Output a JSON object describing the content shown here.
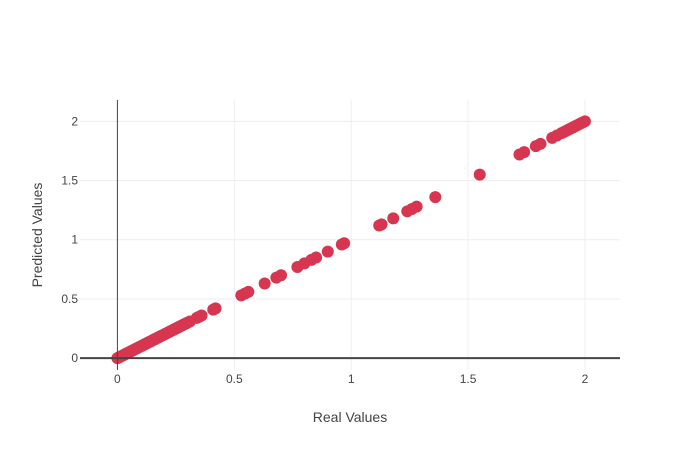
{
  "chart_data": {
    "type": "scatter",
    "title": "",
    "xlabel": "Real Values",
    "ylabel": "Predicted Values",
    "xlim": [
      -0.16,
      2.15
    ],
    "ylim": [
      -0.1,
      2.18
    ],
    "xticks": [
      0,
      0.5,
      1,
      1.5,
      2
    ],
    "xtick_labels": [
      "0",
      "0.5",
      "1",
      "1.5",
      "2"
    ],
    "yticks": [
      0,
      0.5,
      1,
      1.5,
      2
    ],
    "ytick_labels": [
      "0",
      "0.5",
      "1",
      "1.5",
      "2"
    ],
    "grid": true,
    "marker_color": "#d6364f",
    "points": [
      [
        0.0,
        0.0
      ],
      [
        0.005,
        0.005
      ],
      [
        0.01,
        0.01
      ],
      [
        0.015,
        0.015
      ],
      [
        0.02,
        0.02
      ],
      [
        0.025,
        0.025
      ],
      [
        0.03,
        0.03
      ],
      [
        0.035,
        0.035
      ],
      [
        0.04,
        0.04
      ],
      [
        0.045,
        0.045
      ],
      [
        0.05,
        0.05
      ],
      [
        0.055,
        0.055
      ],
      [
        0.06,
        0.06
      ],
      [
        0.065,
        0.065
      ],
      [
        0.07,
        0.07
      ],
      [
        0.075,
        0.075
      ],
      [
        0.08,
        0.08
      ],
      [
        0.085,
        0.085
      ],
      [
        0.09,
        0.09
      ],
      [
        0.095,
        0.095
      ],
      [
        0.1,
        0.1
      ],
      [
        0.105,
        0.105
      ],
      [
        0.11,
        0.11
      ],
      [
        0.115,
        0.115
      ],
      [
        0.12,
        0.12
      ],
      [
        0.125,
        0.125
      ],
      [
        0.13,
        0.13
      ],
      [
        0.135,
        0.135
      ],
      [
        0.14,
        0.14
      ],
      [
        0.145,
        0.145
      ],
      [
        0.15,
        0.15
      ],
      [
        0.155,
        0.155
      ],
      [
        0.16,
        0.16
      ],
      [
        0.165,
        0.165
      ],
      [
        0.17,
        0.17
      ],
      [
        0.175,
        0.175
      ],
      [
        0.18,
        0.18
      ],
      [
        0.185,
        0.185
      ],
      [
        0.19,
        0.19
      ],
      [
        0.195,
        0.195
      ],
      [
        0.2,
        0.2
      ],
      [
        0.205,
        0.205
      ],
      [
        0.21,
        0.21
      ],
      [
        0.215,
        0.215
      ],
      [
        0.22,
        0.22
      ],
      [
        0.225,
        0.225
      ],
      [
        0.23,
        0.23
      ],
      [
        0.235,
        0.235
      ],
      [
        0.24,
        0.24
      ],
      [
        0.245,
        0.245
      ],
      [
        0.25,
        0.25
      ],
      [
        0.255,
        0.255
      ],
      [
        0.26,
        0.26
      ],
      [
        0.265,
        0.265
      ],
      [
        0.27,
        0.27
      ],
      [
        0.275,
        0.275
      ],
      [
        0.28,
        0.28
      ],
      [
        0.285,
        0.285
      ],
      [
        0.29,
        0.29
      ],
      [
        0.295,
        0.295
      ],
      [
        0.3,
        0.3
      ],
      [
        0.31,
        0.31
      ],
      [
        0.34,
        0.34
      ],
      [
        0.35,
        0.35
      ],
      [
        0.36,
        0.36
      ],
      [
        0.41,
        0.41
      ],
      [
        0.42,
        0.42
      ],
      [
        0.53,
        0.53
      ],
      [
        0.545,
        0.545
      ],
      [
        0.56,
        0.56
      ],
      [
        0.63,
        0.63
      ],
      [
        0.68,
        0.68
      ],
      [
        0.7,
        0.7
      ],
      [
        0.77,
        0.77
      ],
      [
        0.8,
        0.8
      ],
      [
        0.83,
        0.83
      ],
      [
        0.85,
        0.85
      ],
      [
        0.9,
        0.9
      ],
      [
        0.96,
        0.96
      ],
      [
        0.97,
        0.97
      ],
      [
        1.12,
        1.12
      ],
      [
        1.13,
        1.13
      ],
      [
        1.18,
        1.18
      ],
      [
        1.24,
        1.24
      ],
      [
        1.26,
        1.26
      ],
      [
        1.28,
        1.28
      ],
      [
        1.36,
        1.36
      ],
      [
        1.55,
        1.55
      ],
      [
        1.72,
        1.72
      ],
      [
        1.74,
        1.74
      ],
      [
        1.79,
        1.79
      ],
      [
        1.81,
        1.81
      ],
      [
        1.86,
        1.86
      ],
      [
        1.88,
        1.88
      ],
      [
        1.9,
        1.9
      ],
      [
        1.91,
        1.91
      ],
      [
        1.92,
        1.92
      ],
      [
        1.93,
        1.93
      ],
      [
        1.94,
        1.94
      ],
      [
        1.95,
        1.95
      ],
      [
        1.96,
        1.96
      ],
      [
        1.97,
        1.97
      ],
      [
        1.98,
        1.98
      ],
      [
        1.99,
        1.99
      ],
      [
        2.0,
        2.0
      ]
    ]
  }
}
